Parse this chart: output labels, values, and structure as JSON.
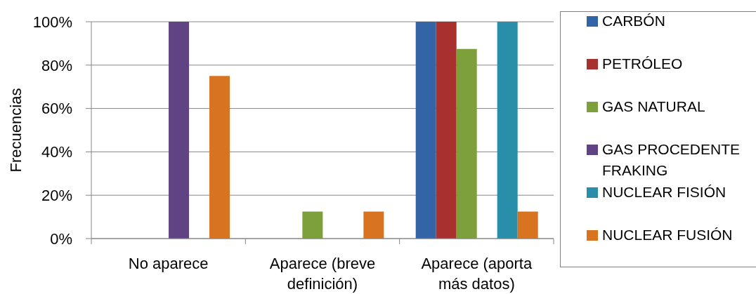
{
  "chart_data": {
    "type": "bar",
    "categories": [
      "No aparece",
      "Aparece (breve definición)",
      "Aparece (aporta más datos)"
    ],
    "ylabel": "Frecuencias",
    "ylim": [
      0,
      100
    ],
    "yticks": [
      {
        "value": 0,
        "label": "0%"
      },
      {
        "value": 20,
        "label": "20%"
      },
      {
        "value": 40,
        "label": "40%"
      },
      {
        "value": 60,
        "label": "60%"
      },
      {
        "value": 80,
        "label": "80%"
      },
      {
        "value": 100,
        "label": "100%"
      }
    ],
    "grid": "y",
    "legend": "right",
    "series": [
      {
        "name": "CARBÓN",
        "color": "#3264a6",
        "values": [
          0,
          0,
          100
        ]
      },
      {
        "name": "PETRÓLEO",
        "color": "#a8302f",
        "values": [
          0,
          0,
          100
        ]
      },
      {
        "name": "GAS NATURAL",
        "color": "#7ea03c",
        "values": [
          0,
          12.5,
          87.5
        ]
      },
      {
        "name": "GAS PROCEDENTE FRAKING",
        "color": "#604382",
        "values": [
          100,
          0,
          0
        ]
      },
      {
        "name": "NUCLEAR FISIÓN",
        "color": "#288ea9",
        "values": [
          0,
          0,
          100
        ]
      },
      {
        "name": "NUCLEAR FUSIÓN",
        "color": "#d8731f",
        "values": [
          75,
          12.5,
          12.5
        ]
      }
    ]
  }
}
